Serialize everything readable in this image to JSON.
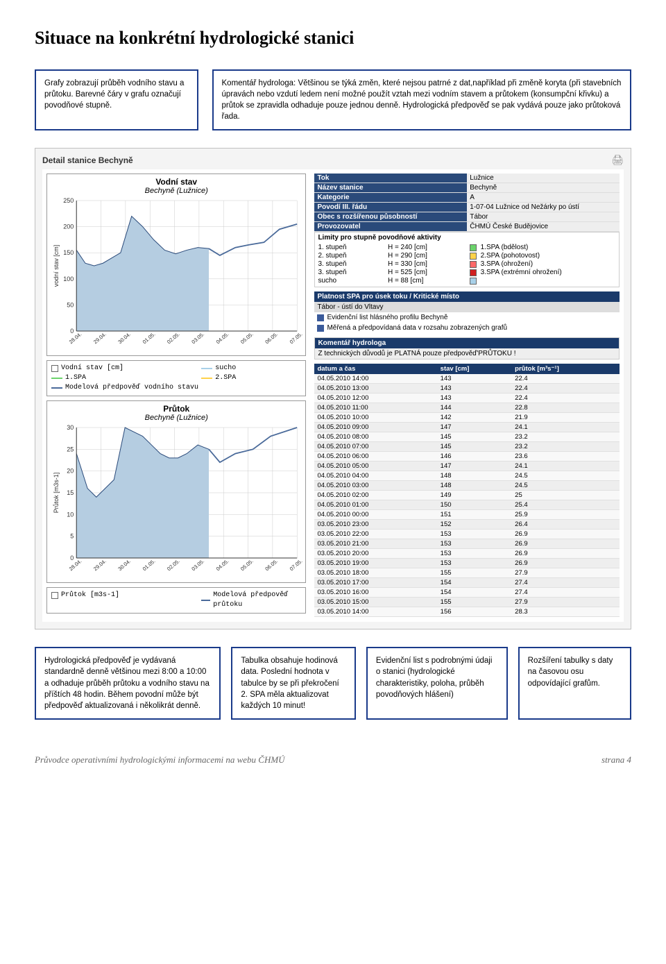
{
  "page": {
    "title": "Situace na konkrétní hydrologické stanici",
    "footer_left": "Průvodce operativními hydrologickými informacemi na webu ČHMÚ",
    "footer_right": "strana 4"
  },
  "top_boxes": {
    "box1": "Grafy zobrazují průběh vodního stavu a průtoku. Barevné čáry v grafu označují povodňové stupně.",
    "box2": "Komentář hydrologa: Většinou se týká změn, které nejsou patrné z dat,například při změně koryta (při stavebních úpravách nebo vzdutí ledem není možné použít vztah mezi vodním stavem a průtokem (konsumpční křivku) a průtok se zpravidla odhaduje pouze jednou denně. Hydrologická předpověď se pak vydává pouze jako průtoková řada."
  },
  "panel_title": "Detail stanice Bechyně",
  "chart1": {
    "title": "Vodní stav",
    "subtitle": "Bechyně (Lužnice)",
    "ylabel": "vodní stav [cm]",
    "ymin": 0,
    "ymax": 250,
    "ystep": 50,
    "xlabels": [
      "28.04.",
      "29.04.",
      "30.04.",
      "01.05.",
      "02.05.",
      "03.05.",
      "04.05.",
      "05.05.",
      "06.05.",
      "07.05."
    ],
    "fill_color": "#b5cde1",
    "line_color": "#4a6a9a",
    "grid_color": "#cccccc",
    "forecast_cut_x": 0.6,
    "poly": [
      [
        0.0,
        155
      ],
      [
        0.04,
        130
      ],
      [
        0.08,
        125
      ],
      [
        0.12,
        130
      ],
      [
        0.16,
        140
      ],
      [
        0.2,
        150
      ],
      [
        0.25,
        220
      ],
      [
        0.3,
        200
      ],
      [
        0.35,
        175
      ],
      [
        0.4,
        155
      ],
      [
        0.45,
        148
      ],
      [
        0.5,
        155
      ],
      [
        0.55,
        160
      ],
      [
        0.6,
        158
      ],
      [
        0.65,
        145
      ],
      [
        0.72,
        160
      ],
      [
        0.78,
        165
      ],
      [
        0.85,
        170
      ],
      [
        0.92,
        195
      ],
      [
        1.0,
        205
      ]
    ],
    "legend": {
      "c1a": "Vodní stav [cm]",
      "c1b": "1.SPA",
      "c1c": "Modelová předpověď vodního stavu",
      "c2a": "sucho",
      "c2b": "2.SPA"
    }
  },
  "chart2": {
    "title": "Průtok",
    "subtitle": "Bechyně (Lužnice)",
    "ylabel": "Průtok [m3s-1]",
    "ymin": 0,
    "ymax": 30,
    "ystep": 5,
    "xlabels": [
      "28.04.",
      "29.04.",
      "30.04.",
      "01.05.",
      "02.05.",
      "03.05.",
      "04.05.",
      "05.05.",
      "06.05.",
      "07.05."
    ],
    "fill_color": "#b5cde1",
    "line_color": "#4a6a9a",
    "grid_color": "#cccccc",
    "forecast_cut_x": 0.6,
    "poly": [
      [
        0.0,
        24
      ],
      [
        0.05,
        16
      ],
      [
        0.09,
        14
      ],
      [
        0.13,
        16
      ],
      [
        0.17,
        18
      ],
      [
        0.22,
        30
      ],
      [
        0.26,
        29
      ],
      [
        0.3,
        28
      ],
      [
        0.34,
        26
      ],
      [
        0.38,
        24
      ],
      [
        0.42,
        23
      ],
      [
        0.46,
        23
      ],
      [
        0.5,
        24
      ],
      [
        0.55,
        26
      ],
      [
        0.6,
        25
      ],
      [
        0.65,
        22
      ],
      [
        0.72,
        24
      ],
      [
        0.8,
        25
      ],
      [
        0.88,
        28
      ],
      [
        1.0,
        30
      ]
    ],
    "legend": {
      "a": "Průtok [m3s-1]",
      "b": "Modelová předpověď průtoku"
    }
  },
  "info_table": {
    "h1": "Tok",
    "v1": "Lužnice",
    "h2": "Název stanice",
    "v2": "Bechyně",
    "h3": "Kategorie",
    "v3": "A",
    "h4": "Povodí III. řádu",
    "v4": "1-07-04 Lužnice od Nežárky po ústí",
    "h5": "Obec s rozšířenou působností",
    "v5": "Tábor",
    "h6": "Provozovatel",
    "v6": "ČHMÚ České Budějovice"
  },
  "limits": {
    "title": "Limity pro stupně povodňové aktivity",
    "rows": [
      {
        "deg": "1. stupeň",
        "val": "H = 240 [cm]",
        "color": "#6bd36b",
        "label": "1.SPA (bdělost)"
      },
      {
        "deg": "2. stupeň",
        "val": "H = 290 [cm]",
        "color": "#ffd24a",
        "label": "2.SPA (pohotovost)"
      },
      {
        "deg": "3. stupeň",
        "val": "H = 330 [cm]",
        "color": "#ff6a6a",
        "label": "3.SPA (ohrožení)"
      },
      {
        "deg": "3. stupeň",
        "val": "H = 525 [cm]",
        "color": "#d02020",
        "label": "3.SPA (extrémní ohrožení)"
      },
      {
        "deg": "sucho",
        "val": "H = 88 [cm]",
        "color": "#a8d0e8",
        "label": ""
      }
    ]
  },
  "spa": {
    "header": "Platnost SPA pro úsek toku / Kritické místo",
    "line": "Tábor - ústí do Vltavy",
    "link1": "Evidenční list hlásného profilu Bechyně",
    "link2": "Měřená a předpovídaná data v rozsahu zobrazených grafů"
  },
  "hydrolog": {
    "header": "Komentář hydrologa",
    "text": "Z technických důvodů je PLATNÁ pouze předpověď'PRŮTOKU !"
  },
  "data": {
    "headers": [
      "datum a čas",
      "stav [cm]",
      "průtok [m³s⁻¹]"
    ],
    "rows": [
      [
        "04.05.2010 14:00",
        "143",
        "22.4"
      ],
      [
        "04.05.2010 13:00",
        "143",
        "22.4"
      ],
      [
        "04.05.2010 12:00",
        "143",
        "22.4"
      ],
      [
        "04.05.2010 11:00",
        "144",
        "22.8"
      ],
      [
        "04.05.2010 10:00",
        "142",
        "21.9"
      ],
      [
        "04.05.2010 09:00",
        "147",
        "24.1"
      ],
      [
        "04.05.2010 08:00",
        "145",
        "23.2"
      ],
      [
        "04.05.2010 07:00",
        "145",
        "23.2"
      ],
      [
        "04.05.2010 06:00",
        "146",
        "23.6"
      ],
      [
        "04.05.2010 05:00",
        "147",
        "24.1"
      ],
      [
        "04.05.2010 04:00",
        "148",
        "24.5"
      ],
      [
        "04.05.2010 03:00",
        "148",
        "24.5"
      ],
      [
        "04.05.2010 02:00",
        "149",
        "25"
      ],
      [
        "04.05.2010 01:00",
        "150",
        "25.4"
      ],
      [
        "04.05.2010 00:00",
        "151",
        "25.9"
      ],
      [
        "03.05.2010 23:00",
        "152",
        "26.4"
      ],
      [
        "03.05.2010 22:00",
        "153",
        "26.9"
      ],
      [
        "03.05.2010 21:00",
        "153",
        "26.9"
      ],
      [
        "03.05.2010 20:00",
        "153",
        "26.9"
      ],
      [
        "03.05.2010 19:00",
        "153",
        "26.9"
      ],
      [
        "03.05.2010 18:00",
        "155",
        "27.9"
      ],
      [
        "03.05.2010 17:00",
        "154",
        "27.4"
      ],
      [
        "03.05.2010 16:00",
        "154",
        "27.4"
      ],
      [
        "03.05.2010 15:00",
        "155",
        "27.9"
      ],
      [
        "03.05.2010 14:00",
        "156",
        "28.3"
      ]
    ]
  },
  "bottom_boxes": {
    "b1": "Hydrologická předpověď je vydávaná standardně denně většinou mezi 8:00 a 10:00 a odhaduje průběh průtoku a vodního stavu na příštích 48 hodin. Během povodní může být předpověď aktualizovaná i několikrát denně.",
    "b2": "Tabulka obsahuje hodinová data. Poslední hodnota v tabulce by se při překročení 2. SPA měla aktualizovat každých 10 minut!",
    "b3": "Evidenční list s podrobnými údaji o stanici (hydrologické charakteristiky, poloha, průběh povodňových hlášení)",
    "b4": "Rozšíření tabulky s daty na časovou osu odpovídající grafům."
  }
}
